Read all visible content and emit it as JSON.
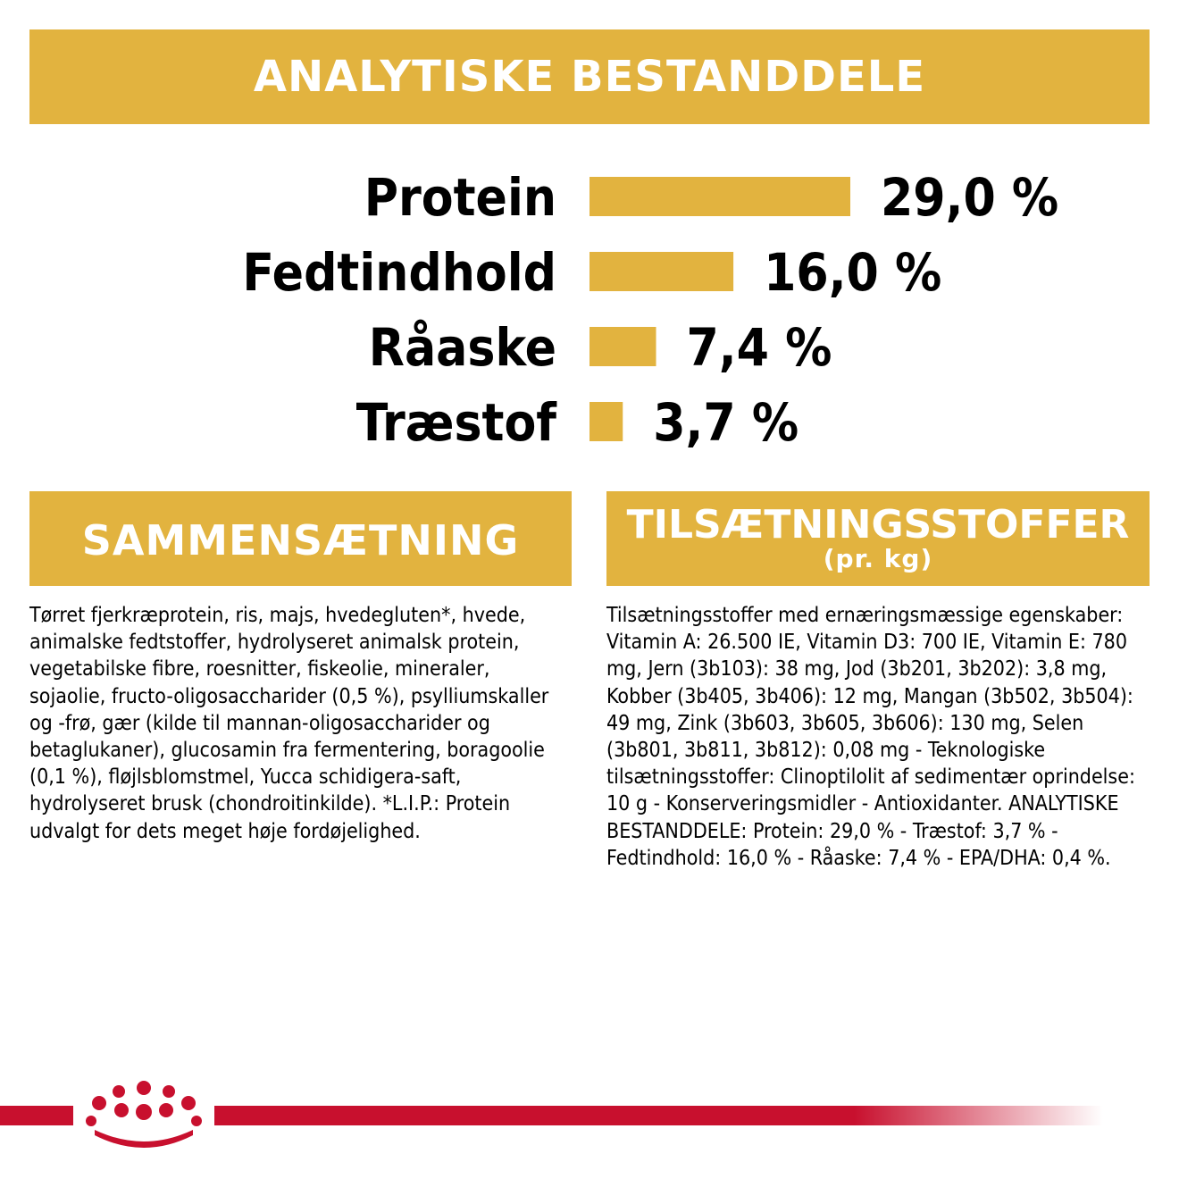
{
  "header": {
    "title": "ANALYTISKE BESTANDDELE"
  },
  "chart_data": {
    "type": "bar",
    "orientation": "horizontal",
    "categories": [
      "Protein",
      "Fedtindhold",
      "Råaske",
      "Træstof"
    ],
    "values": [
      29.0,
      16.0,
      7.4,
      3.7
    ],
    "value_labels": [
      "29,0 %",
      "16,0 %",
      "7,4 %",
      "3,7 %"
    ],
    "unit": "%",
    "bar_color": "#E2B33F",
    "title": "ANALYTISKE BESTANDDELE",
    "grid": false
  },
  "composition": {
    "title": "SAMMENSÆTNING",
    "text": "Tørret fjerkræprotein, ris, majs, hvedegluten*, hvede, animalske fedtstoffer, hydrolyseret animalsk protein, vegetabilske fibre, roesnitter, fiskeolie, mineraler, sojaolie, fructo-oligosaccharider (0,5 %), psylliumskaller og -frø, gær (kilde til mannan-oligosaccharider og betaglukaner), glucosamin fra fermentering, boragoolie (0,1 %), fløjlsblomstmel, Yucca schidigera-saft, hydrolyseret brusk (chondroitinkilde). *L.I.P.: Protein udvalgt for dets meget høje fordøjelighed."
  },
  "additives": {
    "title": "TILSÆTNINGSSTOFFER",
    "subtitle": "(pr. kg)",
    "text": "Tilsætningsstoffer med ernæringsmæssige egenskaber: Vitamin A: 26.500 IE, Vitamin D3: 700 IE, Vitamin E: 780 mg, Jern (3b103): 38 mg, Jod (3b201, 3b202): 3,8 mg, Kobber (3b405, 3b406): 12 mg, Mangan (3b502, 3b504): 49 mg, Zink (3b603, 3b605, 3b606): 130 mg, Selen (3b801, 3b811, 3b812): 0,08 mg - Teknologiske tilsætningsstoffer: Clinoptilolit af sedimentær oprindelse: 10 g - Konserveringsmidler - Antioxidanter. ANALYTISKE BESTANDDELE: Protein: 29,0 % - Træstof: 3,7 % - Fedtindhold: 16,0 % - Råaske: 7,4 % - EPA/DHA: 0,4 %."
  },
  "colors": {
    "accent": "#E2B33F",
    "footer_red": "#C8102E"
  },
  "footer": {
    "logo": "crown-icon"
  }
}
